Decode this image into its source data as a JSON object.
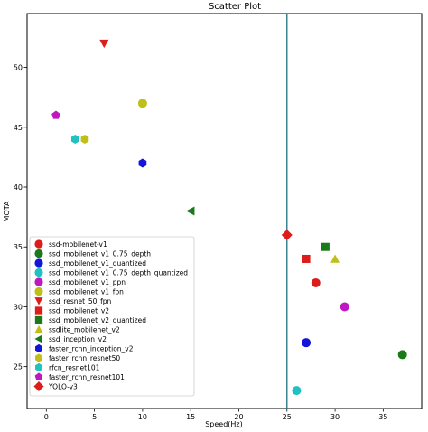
{
  "chart_data": {
    "type": "scatter",
    "title": "Scatter Plot",
    "xlabel": "Speed(Hz)",
    "ylabel": "MOTA",
    "xlim": [
      -2,
      39
    ],
    "ylim": [
      21.5,
      54.5
    ],
    "xticks": [
      0,
      5,
      10,
      15,
      20,
      25,
      30,
      35
    ],
    "yticks": [
      25,
      30,
      35,
      40,
      45,
      50
    ],
    "grid": false,
    "legend_position": "lower-left",
    "vertical_line": {
      "x": 25,
      "color": "#1f6f7f"
    },
    "series": [
      {
        "name": "ssd-mobilenet-v1",
        "marker": "circle",
        "color": "#dd1c1c",
        "points": [
          [
            28,
            32
          ]
        ]
      },
      {
        "name": "ssd_mobilenet_v1_0.75_depth",
        "marker": "circle",
        "color": "#1a7a1a",
        "points": [
          [
            37,
            26
          ]
        ]
      },
      {
        "name": "ssd_mobilenet_v1_quantized",
        "marker": "circle",
        "color": "#1515d9",
        "points": [
          [
            27,
            27
          ]
        ]
      },
      {
        "name": "ssd_mobilenet_v1_0.75_depth_quantized",
        "marker": "circle",
        "color": "#1fc1c1",
        "points": [
          [
            26,
            23
          ]
        ]
      },
      {
        "name": "ssd_mobilenet_v1_ppn",
        "marker": "circle",
        "color": "#c018c0",
        "points": [
          [
            31,
            30
          ]
        ]
      },
      {
        "name": "ssd_mobilenet_v1_fpn",
        "marker": "circle",
        "color": "#bfbf18",
        "points": [
          [
            10,
            47
          ]
        ]
      },
      {
        "name": "ssd_resnet_50_fpn",
        "marker": "triangle-down",
        "color": "#dd1c1c",
        "points": [
          [
            6,
            52
          ]
        ]
      },
      {
        "name": "ssd_mobilenet_v2",
        "marker": "square",
        "color": "#dd1c1c",
        "points": [
          [
            27,
            34
          ]
        ]
      },
      {
        "name": "ssd_mobilenet_v2_quantized",
        "marker": "square",
        "color": "#1a7a1a",
        "points": [
          [
            29,
            35
          ]
        ]
      },
      {
        "name": "ssdlite_mobilenet_v2",
        "marker": "triangle-up",
        "color": "#bfbf18",
        "points": [
          [
            30,
            34
          ]
        ]
      },
      {
        "name": "ssd_inception_v2",
        "marker": "triangle-left",
        "color": "#1a7a1a",
        "points": [
          [
            15,
            38
          ]
        ]
      },
      {
        "name": "faster_rcnn_inception_v2",
        "marker": "hexagon",
        "color": "#1515d9",
        "points": [
          [
            10,
            42
          ]
        ]
      },
      {
        "name": "faster_rcnn_resnet50",
        "marker": "hexagon",
        "color": "#bfbf18",
        "points": [
          [
            4,
            44
          ]
        ]
      },
      {
        "name": "rfcn_resnet101",
        "marker": "hexagon",
        "color": "#1fc1c1",
        "points": [
          [
            3,
            44
          ]
        ]
      },
      {
        "name": "faster_rcnn_resnet101",
        "marker": "pentagon",
        "color": "#c018c0",
        "points": [
          [
            1,
            46
          ]
        ]
      },
      {
        "name": "YOLO-v3",
        "marker": "diamond",
        "color": "#dd1c1c",
        "points": [
          [
            25,
            36
          ]
        ]
      }
    ]
  }
}
